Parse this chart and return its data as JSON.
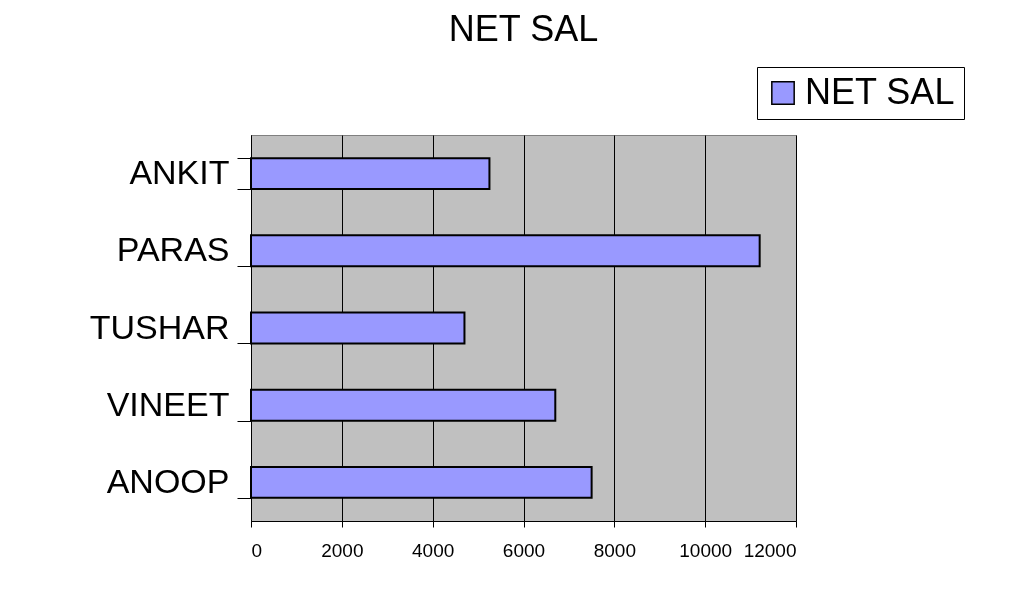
{
  "chart_data": {
    "type": "bar",
    "orientation": "horizontal",
    "title": "NET SAL",
    "categories": [
      "ANKIT",
      "PARAS",
      "TUSHAR",
      "VINEET",
      "ANOOP"
    ],
    "series": [
      {
        "name": "NET SAL",
        "color": "#9999ff",
        "values": [
          5250,
          11200,
          4700,
          6700,
          7500
        ]
      }
    ],
    "xlim": [
      0,
      12000
    ],
    "xticks": [
      0,
      2000,
      4000,
      6000,
      8000,
      10000,
      12000
    ],
    "grid": "x",
    "legend": "top right"
  }
}
